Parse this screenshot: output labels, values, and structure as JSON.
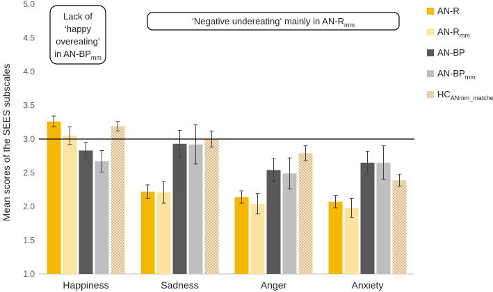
{
  "chart_data": {
    "type": "bar",
    "title": "",
    "xlabel": "",
    "ylabel": "Mean scores of the SEES subscales",
    "ylim": [
      1.0,
      5.0
    ],
    "yticks": [
      1.0,
      1.5,
      2.0,
      2.5,
      3.0,
      3.5,
      4.0,
      4.5,
      5.0
    ],
    "reference_line": 3.0,
    "grid": false,
    "categories": [
      "Happiness",
      "Sadness",
      "Anger",
      "Anxiety"
    ],
    "series": [
      {
        "name": "AN-R",
        "base": "AN-R",
        "subscript": "",
        "color": "#F5B800",
        "pattern": "solid",
        "values": [
          3.26,
          2.22,
          2.14,
          2.07
        ],
        "errors": [
          0.08,
          0.1,
          0.09,
          0.09
        ]
      },
      {
        "name": "AN-Rmm",
        "base": "AN-R",
        "subscript": "mm",
        "color": "#FCE4A0",
        "pattern": "solid",
        "values": [
          3.05,
          2.21,
          2.04,
          1.98
        ],
        "errors": [
          0.13,
          0.16,
          0.15,
          0.14
        ]
      },
      {
        "name": "AN-BP",
        "base": "AN-BP",
        "subscript": "",
        "color": "#595959",
        "pattern": "solid",
        "values": [
          2.83,
          2.93,
          2.54,
          2.65
        ],
        "errors": [
          0.12,
          0.2,
          0.17,
          0.17
        ]
      },
      {
        "name": "AN-BPmm",
        "base": "AN-BP",
        "subscript": "mm",
        "color": "#BFBFBF",
        "pattern": "solid",
        "values": [
          2.67,
          2.92,
          2.49,
          2.65
        ],
        "errors": [
          0.16,
          0.29,
          0.23,
          0.25
        ]
      },
      {
        "name": "HCANmm_matched",
        "base": "HC",
        "subscript": "ANmm_matched",
        "color": "#E2C79A",
        "pattern": "hatch",
        "values": [
          3.19,
          3.0,
          2.79,
          2.39
        ],
        "errors": [
          0.07,
          0.12,
          0.11,
          0.09
        ]
      }
    ],
    "annotations": [
      {
        "id": "lack-happy-overeating",
        "lines": [
          {
            "text": "Lack of",
            "subscript": ""
          },
          {
            "text": "‘happy",
            "subscript": ""
          },
          {
            "text": "overeating’",
            "subscript": ""
          },
          {
            "text": "in AN-BP",
            "subscript": "mm"
          }
        ]
      },
      {
        "id": "negative-undereating",
        "lines": [
          {
            "text": "‘Negative undereating‘ mainly in AN-R",
            "subscript": "mm"
          }
        ]
      }
    ]
  }
}
